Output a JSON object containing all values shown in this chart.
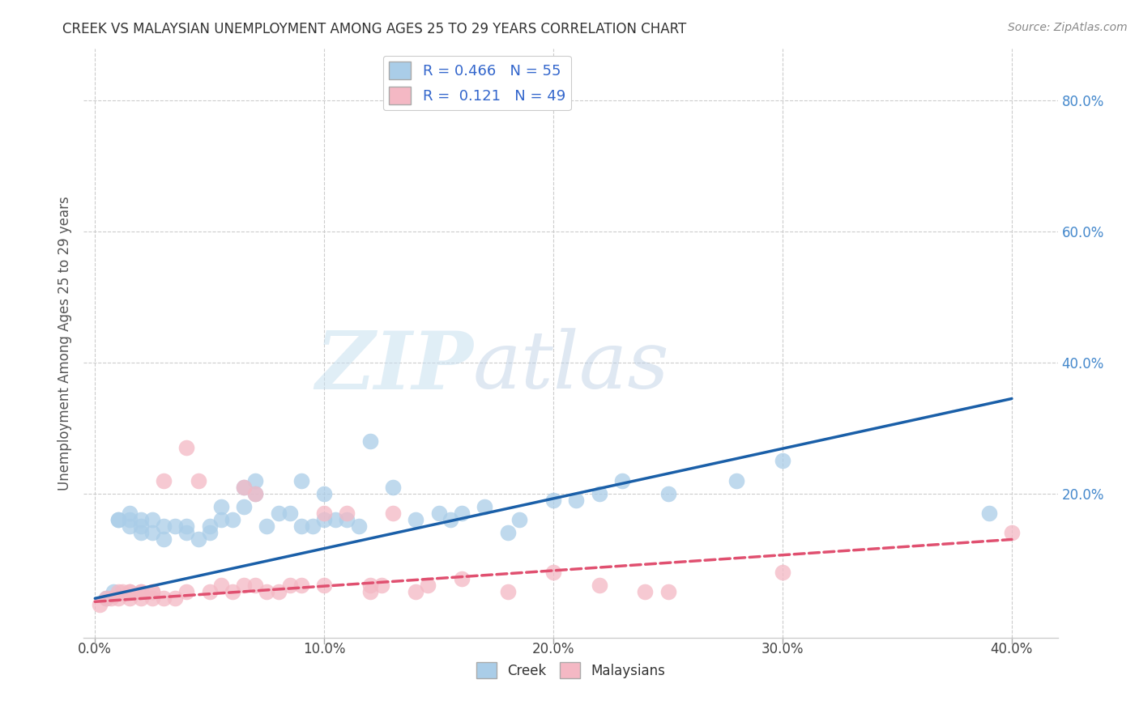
{
  "title": "CREEK VS MALAYSIAN UNEMPLOYMENT AMONG AGES 25 TO 29 YEARS CORRELATION CHART",
  "source": "Source: ZipAtlas.com",
  "ylabel": "Unemployment Among Ages 25 to 29 years",
  "xlim": [
    -0.005,
    0.42
  ],
  "ylim": [
    -0.02,
    0.88
  ],
  "xtick_labels": [
    "0.0%",
    "",
    "",
    "",
    "",
    "",
    "",
    "",
    "",
    "",
    "10.0%",
    "",
    "",
    "",
    "",
    "",
    "",
    "",
    "",
    "",
    "20.0%",
    "",
    "",
    "",
    "",
    "",
    "",
    "",
    "",
    "",
    "30.0%",
    "",
    "",
    "",
    "",
    "",
    "",
    "",
    "",
    "",
    "40.0%"
  ],
  "xtick_vals": [
    0.0,
    0.01,
    0.02,
    0.03,
    0.04,
    0.05,
    0.06,
    0.07,
    0.08,
    0.09,
    0.1,
    0.11,
    0.12,
    0.13,
    0.14,
    0.15,
    0.16,
    0.17,
    0.18,
    0.19,
    0.2,
    0.21,
    0.22,
    0.23,
    0.24,
    0.25,
    0.26,
    0.27,
    0.28,
    0.29,
    0.3,
    0.31,
    0.32,
    0.33,
    0.34,
    0.35,
    0.36,
    0.37,
    0.38,
    0.39,
    0.4
  ],
  "xtick_major_vals": [
    0.0,
    0.1,
    0.2,
    0.3,
    0.4
  ],
  "xtick_major_labels": [
    "0.0%",
    "10.0%",
    "20.0%",
    "30.0%",
    "40.0%"
  ],
  "ytick_vals": [
    0.2,
    0.4,
    0.6,
    0.8
  ],
  "ytick_labels": [
    "20.0%",
    "40.0%",
    "60.0%",
    "80.0%"
  ],
  "watermark_zip": "ZIP",
  "watermark_atlas": "atlas",
  "legend_creek_R": "0.466",
  "legend_creek_N": "55",
  "legend_malay_R": "0.121",
  "legend_malay_N": "49",
  "creek_color": "#aacde8",
  "malay_color": "#f4b8c4",
  "creek_line_color": "#1a5fa8",
  "malay_line_color": "#e05070",
  "background_color": "#ffffff",
  "grid_color": "#cccccc",
  "creek_scatter": [
    [
      0.005,
      0.04
    ],
    [
      0.008,
      0.05
    ],
    [
      0.01,
      0.16
    ],
    [
      0.01,
      0.16
    ],
    [
      0.015,
      0.15
    ],
    [
      0.015,
      0.16
    ],
    [
      0.015,
      0.17
    ],
    [
      0.02,
      0.14
    ],
    [
      0.02,
      0.15
    ],
    [
      0.02,
      0.16
    ],
    [
      0.025,
      0.14
    ],
    [
      0.025,
      0.16
    ],
    [
      0.03,
      0.13
    ],
    [
      0.03,
      0.15
    ],
    [
      0.035,
      0.15
    ],
    [
      0.04,
      0.14
    ],
    [
      0.04,
      0.15
    ],
    [
      0.045,
      0.13
    ],
    [
      0.05,
      0.15
    ],
    [
      0.05,
      0.14
    ],
    [
      0.055,
      0.16
    ],
    [
      0.055,
      0.18
    ],
    [
      0.06,
      0.16
    ],
    [
      0.065,
      0.21
    ],
    [
      0.065,
      0.18
    ],
    [
      0.07,
      0.2
    ],
    [
      0.07,
      0.22
    ],
    [
      0.075,
      0.15
    ],
    [
      0.08,
      0.17
    ],
    [
      0.085,
      0.17
    ],
    [
      0.09,
      0.15
    ],
    [
      0.09,
      0.22
    ],
    [
      0.095,
      0.15
    ],
    [
      0.1,
      0.16
    ],
    [
      0.1,
      0.2
    ],
    [
      0.105,
      0.16
    ],
    [
      0.11,
      0.16
    ],
    [
      0.115,
      0.15
    ],
    [
      0.12,
      0.28
    ],
    [
      0.13,
      0.21
    ],
    [
      0.14,
      0.16
    ],
    [
      0.15,
      0.17
    ],
    [
      0.155,
      0.16
    ],
    [
      0.16,
      0.17
    ],
    [
      0.17,
      0.18
    ],
    [
      0.18,
      0.14
    ],
    [
      0.185,
      0.16
    ],
    [
      0.2,
      0.19
    ],
    [
      0.21,
      0.19
    ],
    [
      0.22,
      0.2
    ],
    [
      0.23,
      0.22
    ],
    [
      0.25,
      0.2
    ],
    [
      0.28,
      0.22
    ],
    [
      0.3,
      0.25
    ],
    [
      0.39,
      0.17
    ]
  ],
  "malay_scatter": [
    [
      0.002,
      0.03
    ],
    [
      0.005,
      0.04
    ],
    [
      0.007,
      0.04
    ],
    [
      0.01,
      0.04
    ],
    [
      0.01,
      0.05
    ],
    [
      0.012,
      0.05
    ],
    [
      0.015,
      0.04
    ],
    [
      0.015,
      0.05
    ],
    [
      0.015,
      0.05
    ],
    [
      0.02,
      0.04
    ],
    [
      0.02,
      0.05
    ],
    [
      0.02,
      0.05
    ],
    [
      0.025,
      0.04
    ],
    [
      0.025,
      0.05
    ],
    [
      0.025,
      0.05
    ],
    [
      0.03,
      0.04
    ],
    [
      0.03,
      0.22
    ],
    [
      0.035,
      0.04
    ],
    [
      0.04,
      0.05
    ],
    [
      0.04,
      0.27
    ],
    [
      0.045,
      0.22
    ],
    [
      0.05,
      0.05
    ],
    [
      0.055,
      0.06
    ],
    [
      0.06,
      0.05
    ],
    [
      0.065,
      0.06
    ],
    [
      0.065,
      0.21
    ],
    [
      0.07,
      0.2
    ],
    [
      0.07,
      0.06
    ],
    [
      0.075,
      0.05
    ],
    [
      0.08,
      0.05
    ],
    [
      0.085,
      0.06
    ],
    [
      0.09,
      0.06
    ],
    [
      0.1,
      0.06
    ],
    [
      0.1,
      0.17
    ],
    [
      0.11,
      0.17
    ],
    [
      0.12,
      0.05
    ],
    [
      0.12,
      0.06
    ],
    [
      0.125,
      0.06
    ],
    [
      0.13,
      0.17
    ],
    [
      0.14,
      0.05
    ],
    [
      0.145,
      0.06
    ],
    [
      0.16,
      0.07
    ],
    [
      0.18,
      0.05
    ],
    [
      0.2,
      0.08
    ],
    [
      0.22,
      0.06
    ],
    [
      0.24,
      0.05
    ],
    [
      0.25,
      0.05
    ],
    [
      0.3,
      0.08
    ],
    [
      0.4,
      0.14
    ]
  ],
  "creek_trendline": [
    [
      0.0,
      0.04
    ],
    [
      0.4,
      0.345
    ]
  ],
  "malay_trendline": [
    [
      0.0,
      0.035
    ],
    [
      0.4,
      0.13
    ]
  ]
}
